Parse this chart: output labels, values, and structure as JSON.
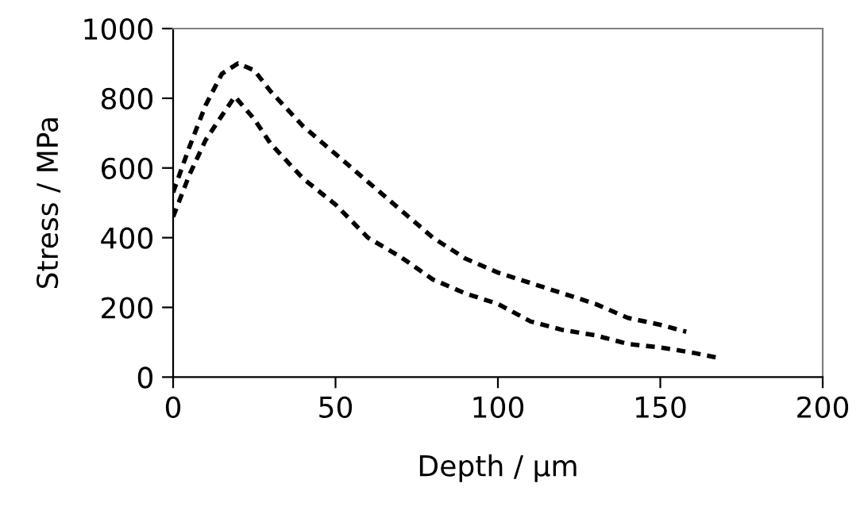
{
  "chart_data": {
    "type": "line",
    "xlabel": "Depth / µm",
    "ylabel": "Stress / MPa",
    "xlim": [
      0,
      200
    ],
    "xticks": [
      0,
      50,
      100,
      150,
      200
    ],
    "ylim": [
      0,
      1000
    ],
    "yticks": [
      0,
      200,
      400,
      600,
      800,
      1000
    ],
    "grid": false,
    "legend": false,
    "marker": "none",
    "line_style": "dashed",
    "series": [
      {
        "color": "#000000",
        "x": [
          0,
          5,
          10,
          15,
          20,
          25,
          30,
          40,
          50,
          60,
          70,
          80,
          90,
          100,
          110,
          120,
          130,
          140,
          150,
          158
        ],
        "values": [
          530,
          660,
          780,
          870,
          900,
          880,
          820,
          720,
          640,
          560,
          480,
          400,
          340,
          300,
          270,
          240,
          210,
          170,
          150,
          130
        ]
      },
      {
        "color": "#000000",
        "x": [
          0,
          5,
          10,
          15,
          19,
          25,
          30,
          40,
          50,
          60,
          70,
          80,
          90,
          100,
          110,
          120,
          130,
          140,
          150,
          160,
          168
        ],
        "values": [
          460,
          580,
          680,
          750,
          805,
          740,
          670,
          570,
          495,
          400,
          345,
          280,
          240,
          210,
          160,
          135,
          120,
          95,
          85,
          70,
          55
        ]
      }
    ]
  }
}
